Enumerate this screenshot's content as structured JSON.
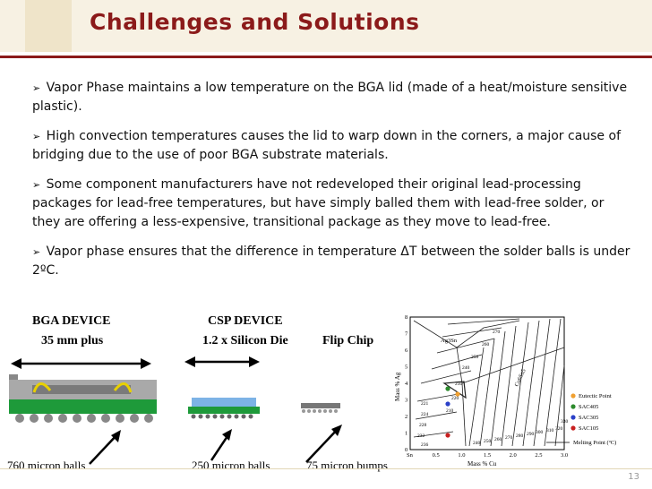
{
  "slide": {
    "title": "Challenges and Solutions",
    "page_number": "13"
  },
  "bullets": [
    {
      "text": "Vapor Phase maintains a low temperature on the BGA lid (made of a heat/moisture sensitive plastic)."
    },
    {
      "text": "High convection temperatures causes the lid to warp down in the corners, a major cause of bridging due to the use of poor BGA substrate materials."
    },
    {
      "text": "Some component manufacturers have not redeveloped their original lead-processing packages for lead-free temperatures, but have simply balled them with lead-free solder, or they are offering a less-expensive, transitional package as they move to lead-free."
    },
    {
      "text": "Vapor phase ensures that the difference in temperature ΔT between the solder balls is under 2ºC."
    }
  ],
  "packages": {
    "bga": {
      "title": "BGA DEVICE",
      "size": "35 mm plus",
      "balls": "760 micron balls"
    },
    "csp": {
      "title": "CSP DEVICE",
      "size": "1.2 x Silicon Die",
      "balls": "250 micron balls"
    },
    "flip": {
      "title": "Flip Chip",
      "balls": "75 micron bumps"
    }
  },
  "phase_diagram": {
    "y_axis_label": "Mass % Ag",
    "x_axis_label": "Mass % Cu",
    "x_ticks": [
      "Sn",
      "0.5",
      "1.0",
      "1.5",
      "2.0",
      "2.5",
      "3.0"
    ],
    "y_ticks": [
      "0",
      "1",
      "2",
      "3",
      "4",
      "5",
      "6",
      "7",
      "8"
    ],
    "region_labels": [
      "Ag3Sn",
      "Cu6Sn5"
    ],
    "isotherms": [
      "270",
      "260",
      "250",
      "240",
      "230",
      "220",
      "210",
      "221",
      "224",
      "228",
      "232",
      "236",
      "240",
      "250",
      "260",
      "270",
      "280",
      "290",
      "300",
      "310",
      "320",
      "330"
    ],
    "legend": [
      {
        "label": "Eutectic Point",
        "color": "#f0a030"
      },
      {
        "label": "SAC405",
        "color": "#2c8a2c"
      },
      {
        "label": "SAC305",
        "color": "#2a40c8"
      },
      {
        "label": "SAC105",
        "color": "#c82020"
      },
      {
        "label": "Melting Point (ºC)",
        "color": "#000000"
      }
    ]
  }
}
